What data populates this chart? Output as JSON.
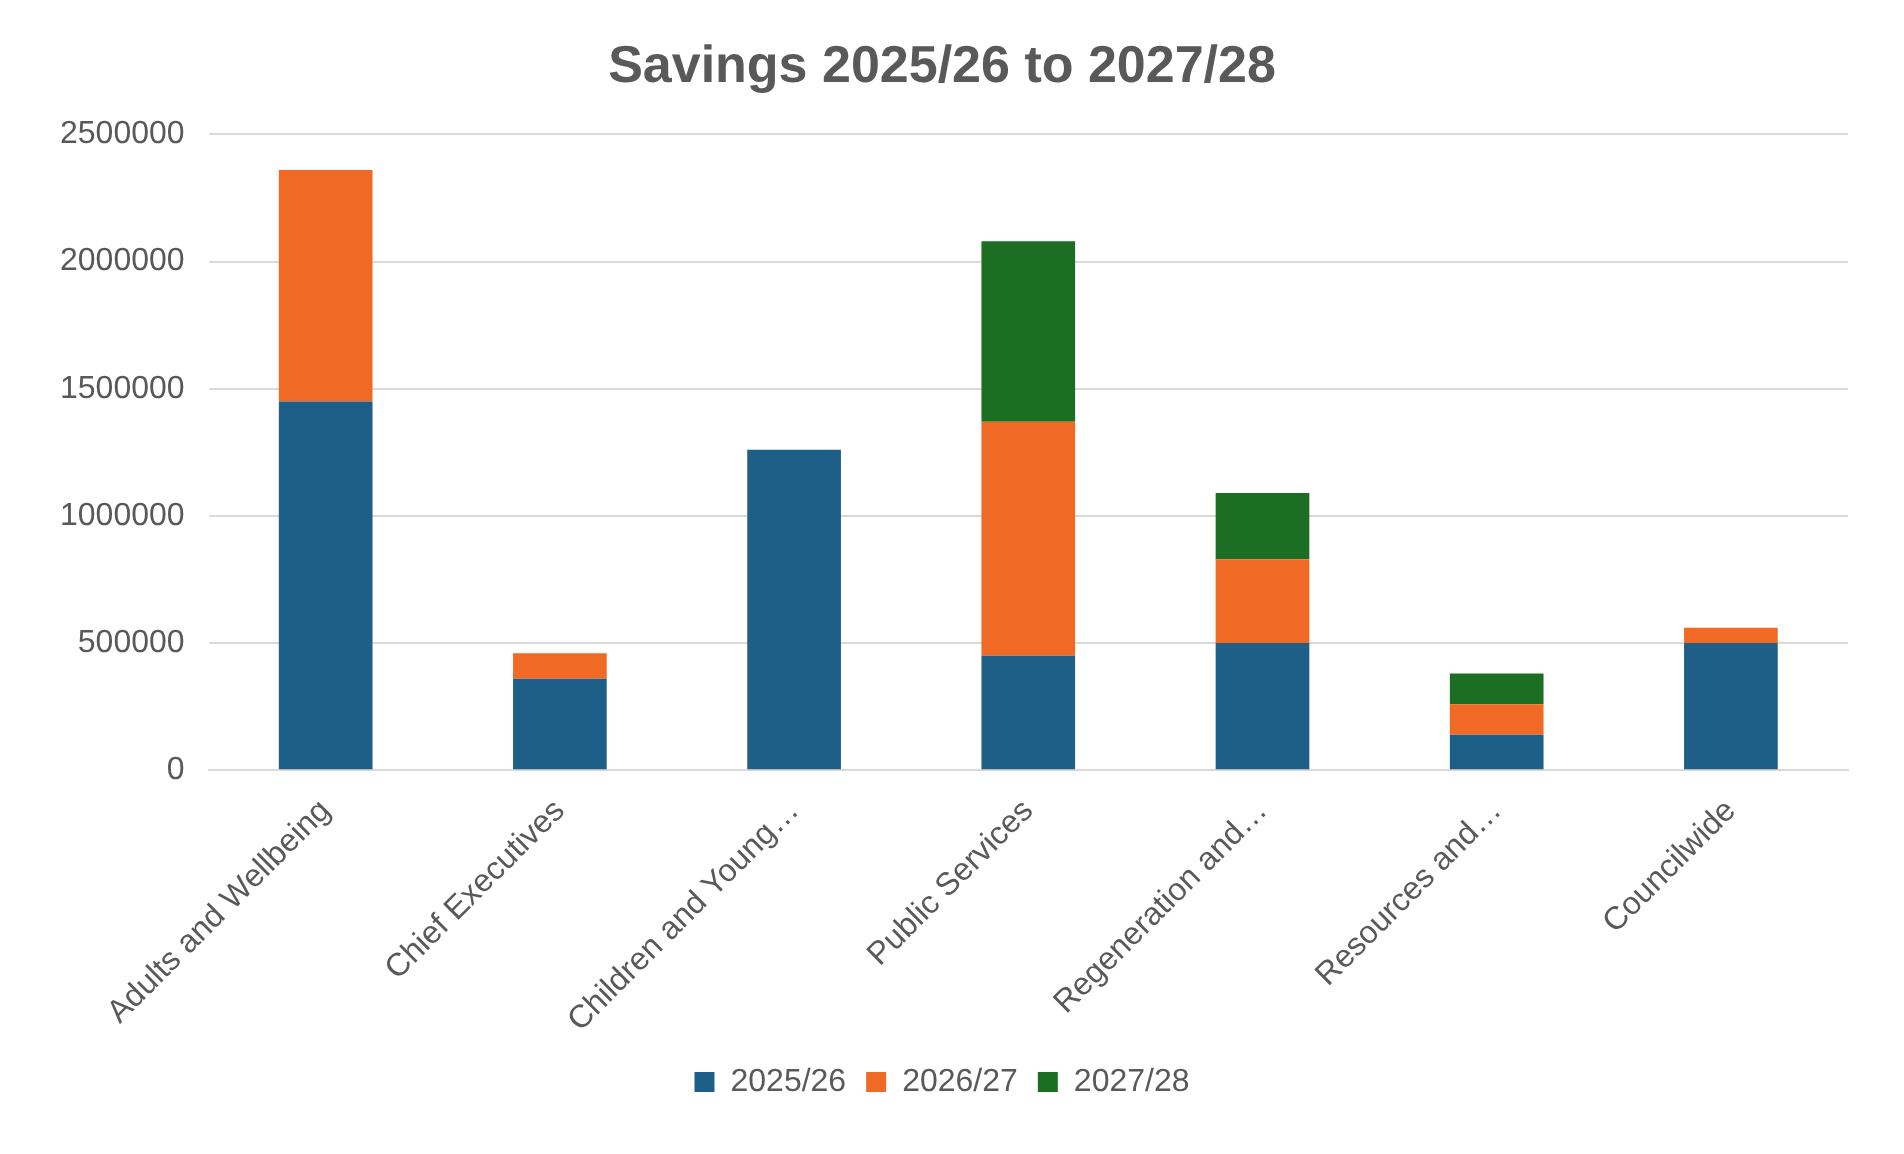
{
  "chart_data": {
    "type": "bar",
    "title": "Savings 2025/26 to 2027/28",
    "categories": [
      "Adults and Wellbeing",
      "Chief Executives",
      "Children and Young…",
      "Public Services",
      "Regeneration and…",
      "Resources and…",
      "Councilwide"
    ],
    "series": [
      {
        "name": "2025/26",
        "color": "#1d5f86",
        "values": [
          1450000,
          360000,
          1260000,
          450000,
          500000,
          140000,
          500000
        ]
      },
      {
        "name": "2026/27",
        "color": "#f06a25",
        "values": [
          910000,
          100000,
          null,
          920000,
          330000,
          120000,
          60000
        ]
      },
      {
        "name": "2027/28",
        "color": "#1c6e23",
        "values": [
          null,
          null,
          null,
          710000,
          260000,
          120000,
          null
        ]
      }
    ],
    "stacked": true,
    "ylim": [
      0,
      2500000
    ],
    "yticks": [
      0,
      500000,
      1000000,
      1500000,
      2000000,
      2500000
    ],
    "grid": "y",
    "legend": "bottom"
  }
}
